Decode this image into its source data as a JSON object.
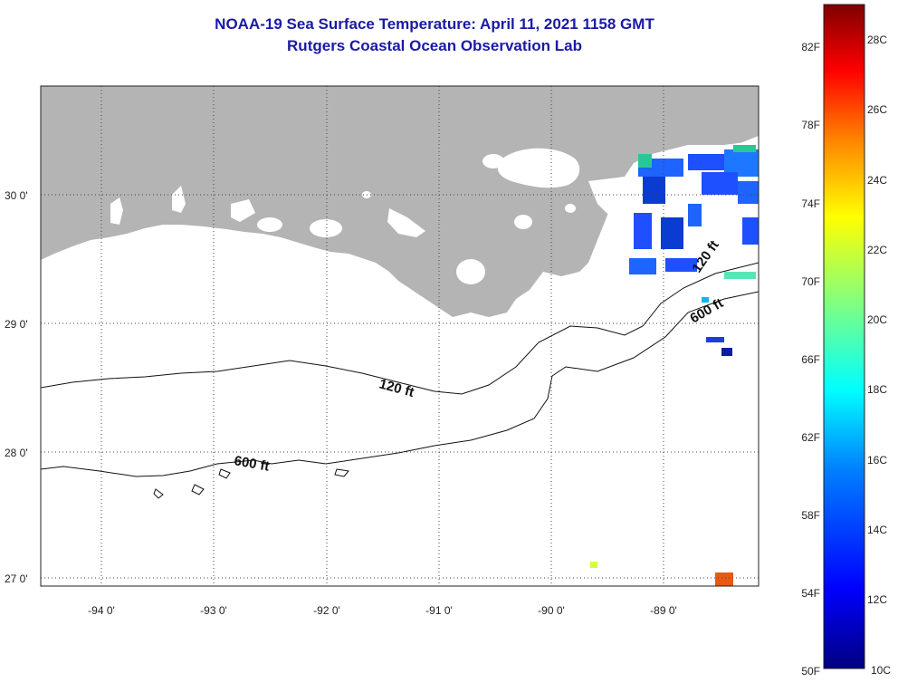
{
  "title": "NOAA-19 Sea Surface Temperature:  April 11, 2021 1158 GMT",
  "subtitle": "Rutgers Coastal Ocean Observation Lab",
  "lat_labels": [
    "30 0'",
    "29 0'",
    "28 0'",
    "27 0'"
  ],
  "lon_labels": [
    "-94 0'",
    "-93 0'",
    "-92 0'",
    "-91 0'",
    "-90 0'",
    "-89 0'"
  ],
  "contours": [
    {
      "label": "120 ft"
    },
    {
      "label": "120 ft"
    },
    {
      "label": "600 ft"
    },
    {
      "label": "600 ft"
    }
  ],
  "colorbar": {
    "fahrenheit": [
      "82F",
      "78F",
      "74F",
      "70F",
      "66F",
      "62F",
      "58F",
      "54F",
      "50F"
    ],
    "celsius": [
      "28C",
      "26C",
      "24C",
      "22C",
      "20C",
      "18C",
      "16C",
      "14C",
      "12C",
      "10C"
    ],
    "colors": [
      "#800000",
      "#ff0000",
      "#ff8000",
      "#ffff00",
      "#80ff80",
      "#00ffff",
      "#0080ff",
      "#0000ff",
      "#000080"
    ]
  },
  "colors": {
    "land": "#b4b4b4",
    "title": "#1a1aa6"
  }
}
